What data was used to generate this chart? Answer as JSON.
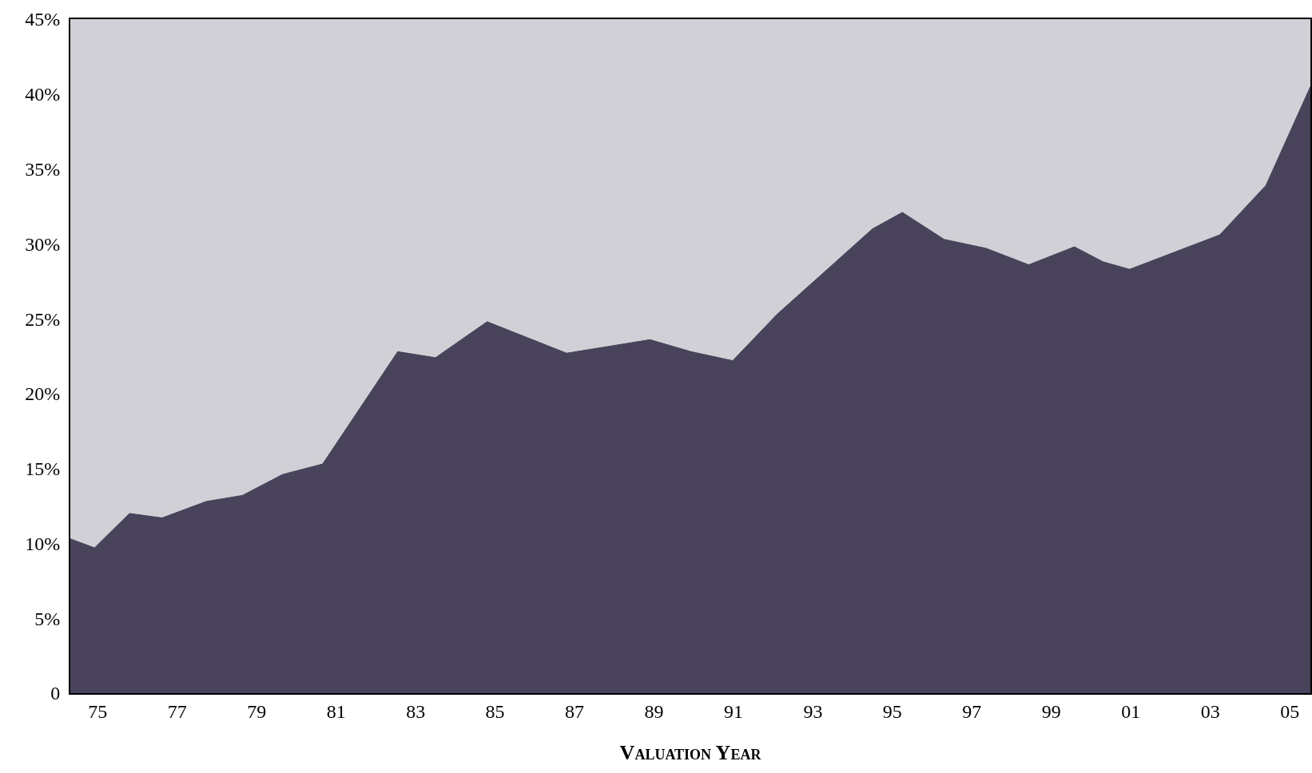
{
  "chart_data": {
    "type": "area",
    "xlabel": "Valuation Year",
    "x": [
      1974.31,
      1974.92,
      1975.8,
      1976.62,
      1977.73,
      1978.64,
      1979.65,
      1980.66,
      1982.55,
      1983.5,
      1984.8,
      1986.8,
      1988.9,
      1989.93,
      1990.98,
      1992.1,
      1994.5,
      1995.25,
      1996.3,
      1997.36,
      1998.43,
      1999.58,
      2000.3,
      2000.97,
      2003.24,
      2004.4,
      2005.52
    ],
    "series": [
      {
        "color": "#48435a",
        "values": [
          10.3,
          9.7,
          12.0,
          11.7,
          12.8,
          13.2,
          14.6,
          15.3,
          22.8,
          22.4,
          24.8,
          22.7,
          23.6,
          22.8,
          22.2,
          25.3,
          31.0,
          32.1,
          30.3,
          29.7,
          28.6,
          29.8,
          28.8,
          28.3,
          30.6,
          33.9,
          40.5
        ]
      }
    ],
    "xlim": [
      1974.31,
      2005.52
    ],
    "xticks": [
      {
        "value": 1975,
        "label": "75"
      },
      {
        "value": 1977,
        "label": "77"
      },
      {
        "value": 1979,
        "label": "79"
      },
      {
        "value": 1981,
        "label": "81"
      },
      {
        "value": 1983,
        "label": "83"
      },
      {
        "value": 1985,
        "label": "85"
      },
      {
        "value": 1987,
        "label": "87"
      },
      {
        "value": 1989,
        "label": "89"
      },
      {
        "value": 1991,
        "label": "91"
      },
      {
        "value": 1993,
        "label": "93"
      },
      {
        "value": 1995,
        "label": "95"
      },
      {
        "value": 1997,
        "label": "97"
      },
      {
        "value": 1999,
        "label": "99"
      },
      {
        "value": 2001,
        "label": "01"
      },
      {
        "value": 2003,
        "label": "03"
      },
      {
        "value": 2005,
        "label": "05"
      }
    ],
    "ylim": [
      0,
      45
    ],
    "yticks": [
      0,
      {
        "value": 5,
        "label": "5%"
      },
      {
        "value": 10,
        "label": "10%"
      },
      {
        "value": 15,
        "label": "15%"
      },
      {
        "value": 20,
        "label": "20%"
      },
      {
        "value": 25,
        "label": "25%"
      },
      {
        "value": 30,
        "label": "30%"
      },
      {
        "value": 35,
        "label": "35%"
      },
      {
        "value": 40,
        "label": "40%"
      },
      {
        "value": 45,
        "label": "45%"
      }
    ],
    "grid": false
  }
}
